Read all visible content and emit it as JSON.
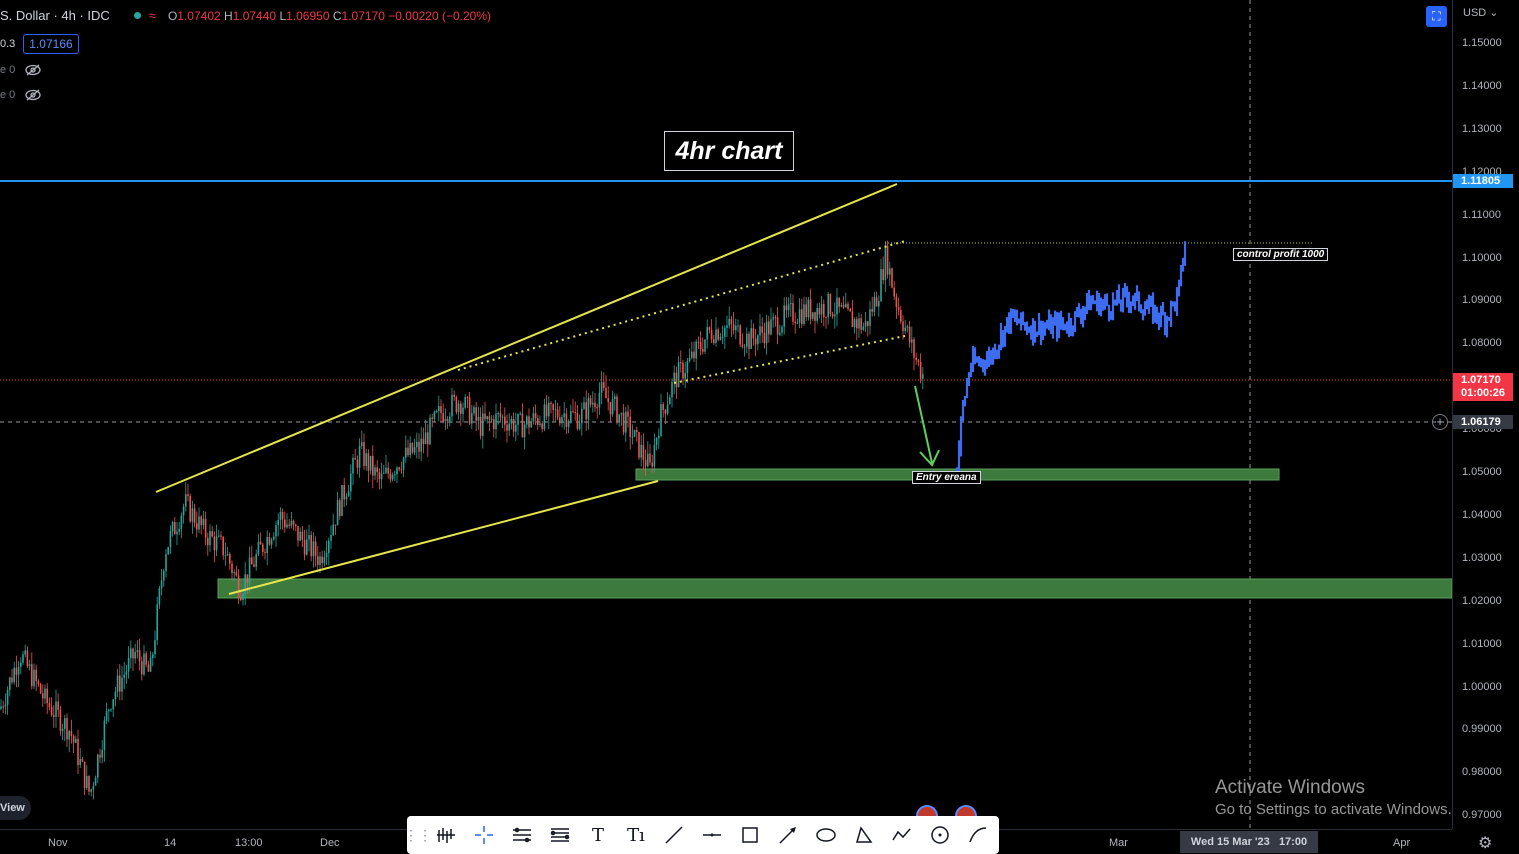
{
  "header": {
    "symbol": "S. Dollar · 4h · IDC",
    "ohlc_parts": [
      {
        "k": "O",
        "v": "1.07402"
      },
      {
        "k": "H",
        "v": "1.07440"
      },
      {
        "k": "L",
        "v": "1.06950"
      },
      {
        "k": "C",
        "v": "1.07170"
      }
    ],
    "change": "−0.00220 (−0.20%)",
    "row2_left": "0.3",
    "current_price_badge": "1.07166"
  },
  "indicators": [
    {
      "label": "e 0"
    },
    {
      "label": "e 0"
    }
  ],
  "annotations": {
    "title": "4hr chart",
    "control_profit": "control profit 1000",
    "entry": "Entry ereana"
  },
  "price_axis": {
    "currency": "USD",
    "ticks": [
      "1.15000",
      "1.14000",
      "1.13000",
      "1.12000",
      "1.11000",
      "1.10000",
      "1.09000",
      "1.08000",
      "1.07000",
      "1.06000",
      "1.05000",
      "1.04000",
      "1.03000",
      "1.02000",
      "1.01000",
      "1.00000",
      "0.99000",
      "0.98000",
      "0.97000"
    ],
    "resistance_label": "1.11805",
    "last_price_label": "1.07170",
    "countdown": "01:00:26",
    "crosshair_label": "1.06179"
  },
  "time_axis": {
    "ticks": [
      {
        "label": "Nov"
      },
      {
        "label": "14"
      },
      {
        "label": "13:00"
      },
      {
        "label": "Dec"
      },
      {
        "label": "Mar"
      },
      {
        "label": "Apr"
      }
    ],
    "crosshair_label": "Wed 15 Mar '23",
    "crosshair_time": "17:00"
  },
  "left_button": "View",
  "watermark": {
    "title": "Activate Windows",
    "subtitle": "Go to Settings to activate Windows."
  },
  "toolbar": {
    "tools": [
      "bars-icon",
      "crosshair-icon",
      "trendlines-icon",
      "fib-icon",
      "text-icon",
      "text-note-icon",
      "line-icon",
      "horizontal-line-icon",
      "rectangle-icon",
      "arrow-icon",
      "ellipse-icon",
      "triangle-icon",
      "path-icon",
      "circle-icon",
      "curve-icon"
    ]
  },
  "colors": {
    "up": "#26a69a",
    "down": "#ef5350",
    "resistance": "#2196f3",
    "trend": "#e6e64a",
    "zone": "#3d7a3d",
    "projection": "#3d6cf0",
    "last_price": "#f23645"
  },
  "chart_data": {
    "type": "candlestick",
    "symbol": "S. Dollar",
    "timeframe": "4h",
    "ylim": [
      0.965,
      1.155
    ],
    "last_price": 1.0717,
    "levels": [
      {
        "name": "resistance",
        "value": 1.11805
      },
      {
        "name": "crosshair",
        "value": 1.06179
      }
    ],
    "zones": [
      {
        "from": 1.0482,
        "to": 1.0508
      },
      {
        "from": 1.0198,
        "to": 1.0243
      }
    ],
    "price_path": [
      {
        "x": 0,
        "y": 0.995
      },
      {
        "x": 20,
        "y": 1.008
      },
      {
        "x": 45,
        "y": 0.997
      },
      {
        "x": 70,
        "y": 0.99
      },
      {
        "x": 90,
        "y": 0.975
      },
      {
        "x": 110,
        "y": 0.997
      },
      {
        "x": 135,
        "y": 1.008
      },
      {
        "x": 150,
        "y": 1.003
      },
      {
        "x": 165,
        "y": 1.032
      },
      {
        "x": 185,
        "y": 1.043
      },
      {
        "x": 205,
        "y": 1.036
      },
      {
        "x": 225,
        "y": 1.032
      },
      {
        "x": 240,
        "y": 1.023
      },
      {
        "x": 260,
        "y": 1.032
      },
      {
        "x": 280,
        "y": 1.04
      },
      {
        "x": 300,
        "y": 1.035
      },
      {
        "x": 320,
        "y": 1.03
      },
      {
        "x": 340,
        "y": 1.043
      },
      {
        "x": 360,
        "y": 1.055
      },
      {
        "x": 380,
        "y": 1.048
      },
      {
        "x": 400,
        "y": 1.053
      },
      {
        "x": 420,
        "y": 1.056
      },
      {
        "x": 440,
        "y": 1.064
      },
      {
        "x": 460,
        "y": 1.067
      },
      {
        "x": 480,
        "y": 1.061
      },
      {
        "x": 500,
        "y": 1.063
      },
      {
        "x": 520,
        "y": 1.061
      },
      {
        "x": 540,
        "y": 1.063
      },
      {
        "x": 560,
        "y": 1.064
      },
      {
        "x": 580,
        "y": 1.063
      },
      {
        "x": 600,
        "y": 1.069
      },
      {
        "x": 615,
        "y": 1.065
      },
      {
        "x": 630,
        "y": 1.06
      },
      {
        "x": 650,
        "y": 1.051
      },
      {
        "x": 660,
        "y": 1.063
      },
      {
        "x": 675,
        "y": 1.072
      },
      {
        "x": 690,
        "y": 1.076
      },
      {
        "x": 710,
        "y": 1.083
      },
      {
        "x": 730,
        "y": 1.084
      },
      {
        "x": 750,
        "y": 1.081
      },
      {
        "x": 770,
        "y": 1.084
      },
      {
        "x": 790,
        "y": 1.087
      },
      {
        "x": 810,
        "y": 1.088
      },
      {
        "x": 830,
        "y": 1.089
      },
      {
        "x": 850,
        "y": 1.086
      },
      {
        "x": 865,
        "y": 1.084
      },
      {
        "x": 878,
        "y": 1.092
      },
      {
        "x": 886,
        "y": 1.101
      },
      {
        "x": 895,
        "y": 1.091
      },
      {
        "x": 905,
        "y": 1.084
      },
      {
        "x": 915,
        "y": 1.077
      },
      {
        "x": 925,
        "y": 1.0717
      }
    ],
    "projection_path": [
      {
        "x": 957,
        "y": 1.051
      },
      {
        "x": 962,
        "y": 1.064
      },
      {
        "x": 970,
        "y": 1.075
      },
      {
        "x": 990,
        "y": 1.077
      },
      {
        "x": 1010,
        "y": 1.086
      },
      {
        "x": 1030,
        "y": 1.084
      },
      {
        "x": 1050,
        "y": 1.084
      },
      {
        "x": 1070,
        "y": 1.085
      },
      {
        "x": 1090,
        "y": 1.09
      },
      {
        "x": 1110,
        "y": 1.089
      },
      {
        "x": 1130,
        "y": 1.091
      },
      {
        "x": 1150,
        "y": 1.088
      },
      {
        "x": 1165,
        "y": 1.086
      },
      {
        "x": 1178,
        "y": 1.091
      },
      {
        "x": 1186,
        "y": 1.105
      }
    ]
  }
}
